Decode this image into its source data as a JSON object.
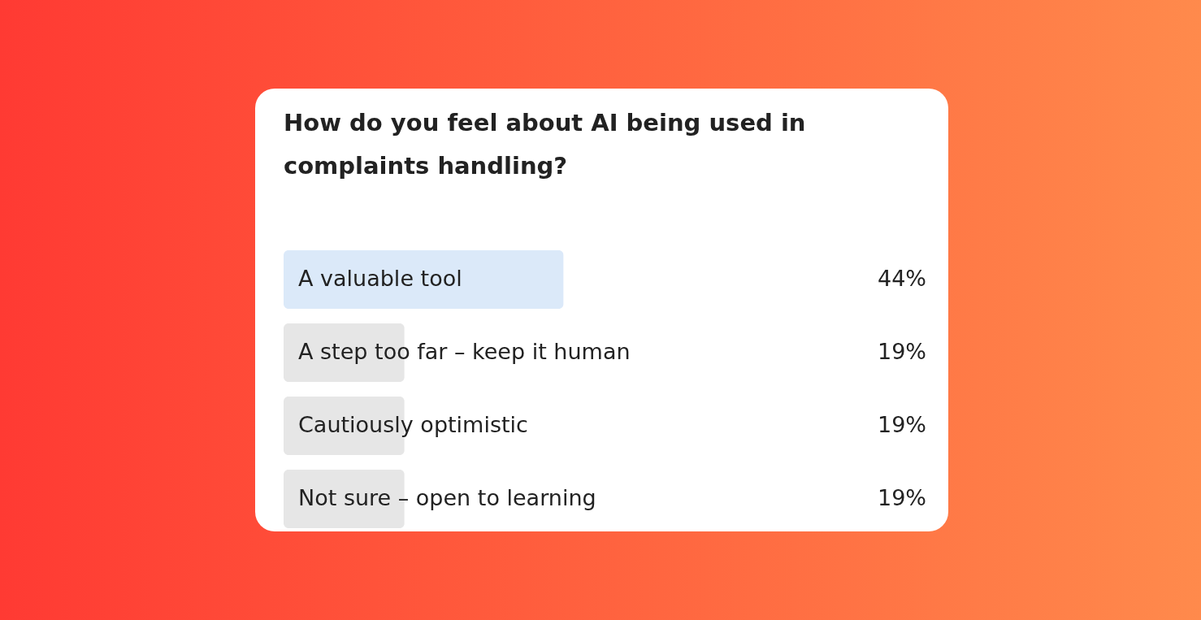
{
  "chart_data": {
    "type": "bar",
    "orientation": "horizontal",
    "title": "How do you feel about AI being used in complaints handling?",
    "categories": [
      "A valuable tool",
      "A step too far – keep it human",
      "Cautiously optimistic",
      "Not sure – open to learning"
    ],
    "values": [
      44,
      19,
      19,
      19
    ],
    "value_labels": [
      "44%",
      "19%",
      "19%",
      "19%"
    ],
    "colors": [
      "#dbe9f9",
      "#e6e6e6",
      "#e6e6e6",
      "#e6e6e6"
    ],
    "tick_labels": false
  }
}
